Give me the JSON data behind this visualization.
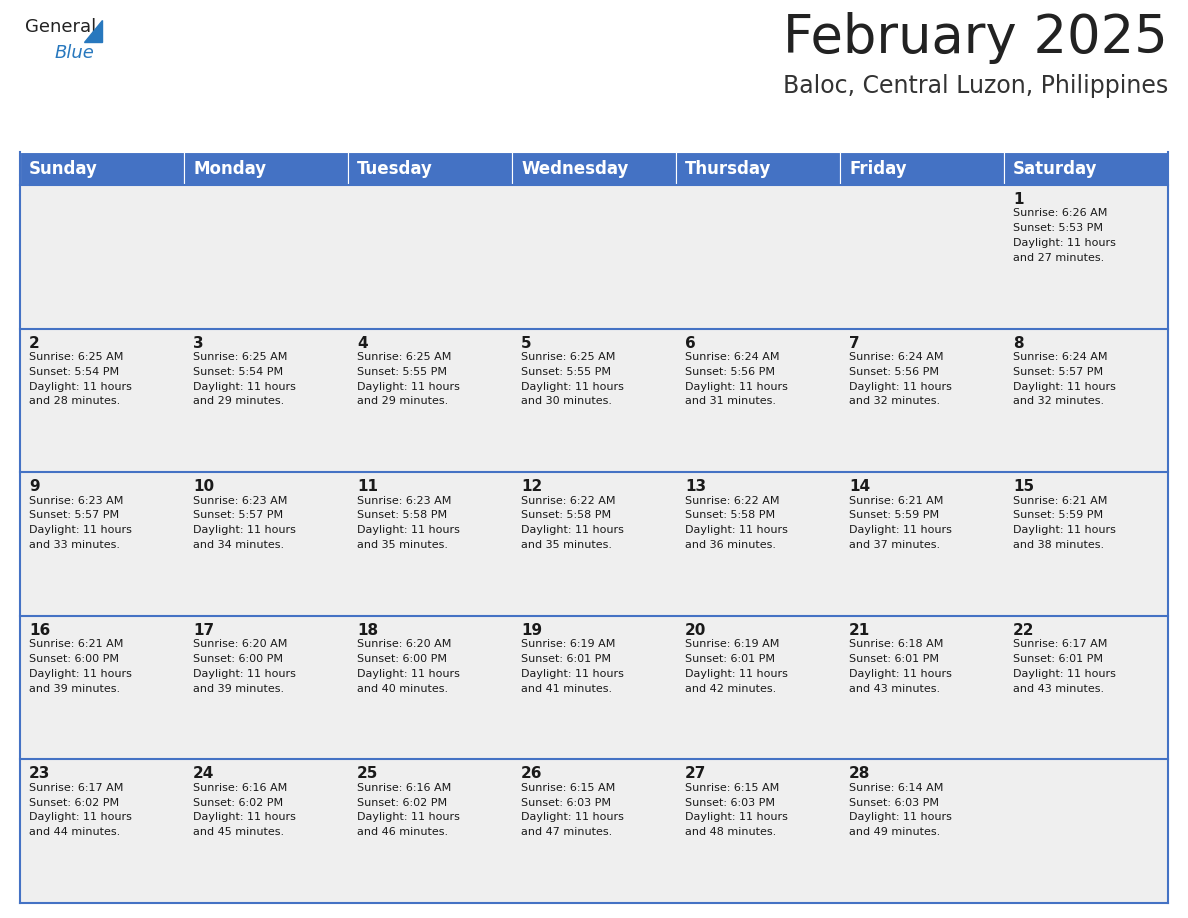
{
  "title": "February 2025",
  "subtitle": "Baloc, Central Luzon, Philippines",
  "header_bg": "#4472C4",
  "header_text_color": "#FFFFFF",
  "header_font_size": 12,
  "days_of_week": [
    "Sunday",
    "Monday",
    "Tuesday",
    "Wednesday",
    "Thursday",
    "Friday",
    "Saturday"
  ],
  "title_font_size": 38,
  "subtitle_font_size": 17,
  "title_color": "#222222",
  "subtitle_color": "#333333",
  "cell_bg_even": "#EFEFEF",
  "cell_bg_odd": "#FFFFFF",
  "day_num_color": "#1a1a1a",
  "info_color": "#1a1a1a",
  "border_color": "#4472C4",
  "logo_general_color": "#222222",
  "logo_blue_color": "#2878BE",
  "weeks": [
    [
      {
        "day": null,
        "sunrise": null,
        "sunset": null,
        "daylight": null
      },
      {
        "day": null,
        "sunrise": null,
        "sunset": null,
        "daylight": null
      },
      {
        "day": null,
        "sunrise": null,
        "sunset": null,
        "daylight": null
      },
      {
        "day": null,
        "sunrise": null,
        "sunset": null,
        "daylight": null
      },
      {
        "day": null,
        "sunrise": null,
        "sunset": null,
        "daylight": null
      },
      {
        "day": null,
        "sunrise": null,
        "sunset": null,
        "daylight": null
      },
      {
        "day": 1,
        "sunrise": "6:26 AM",
        "sunset": "5:53 PM",
        "daylight": "11 hours and 27 minutes."
      }
    ],
    [
      {
        "day": 2,
        "sunrise": "6:25 AM",
        "sunset": "5:54 PM",
        "daylight": "11 hours and 28 minutes."
      },
      {
        "day": 3,
        "sunrise": "6:25 AM",
        "sunset": "5:54 PM",
        "daylight": "11 hours and 29 minutes."
      },
      {
        "day": 4,
        "sunrise": "6:25 AM",
        "sunset": "5:55 PM",
        "daylight": "11 hours and 29 minutes."
      },
      {
        "day": 5,
        "sunrise": "6:25 AM",
        "sunset": "5:55 PM",
        "daylight": "11 hours and 30 minutes."
      },
      {
        "day": 6,
        "sunrise": "6:24 AM",
        "sunset": "5:56 PM",
        "daylight": "11 hours and 31 minutes."
      },
      {
        "day": 7,
        "sunrise": "6:24 AM",
        "sunset": "5:56 PM",
        "daylight": "11 hours and 32 minutes."
      },
      {
        "day": 8,
        "sunrise": "6:24 AM",
        "sunset": "5:57 PM",
        "daylight": "11 hours and 32 minutes."
      }
    ],
    [
      {
        "day": 9,
        "sunrise": "6:23 AM",
        "sunset": "5:57 PM",
        "daylight": "11 hours and 33 minutes."
      },
      {
        "day": 10,
        "sunrise": "6:23 AM",
        "sunset": "5:57 PM",
        "daylight": "11 hours and 34 minutes."
      },
      {
        "day": 11,
        "sunrise": "6:23 AM",
        "sunset": "5:58 PM",
        "daylight": "11 hours and 35 minutes."
      },
      {
        "day": 12,
        "sunrise": "6:22 AM",
        "sunset": "5:58 PM",
        "daylight": "11 hours and 35 minutes."
      },
      {
        "day": 13,
        "sunrise": "6:22 AM",
        "sunset": "5:58 PM",
        "daylight": "11 hours and 36 minutes."
      },
      {
        "day": 14,
        "sunrise": "6:21 AM",
        "sunset": "5:59 PM",
        "daylight": "11 hours and 37 minutes."
      },
      {
        "day": 15,
        "sunrise": "6:21 AM",
        "sunset": "5:59 PM",
        "daylight": "11 hours and 38 minutes."
      }
    ],
    [
      {
        "day": 16,
        "sunrise": "6:21 AM",
        "sunset": "6:00 PM",
        "daylight": "11 hours and 39 minutes."
      },
      {
        "day": 17,
        "sunrise": "6:20 AM",
        "sunset": "6:00 PM",
        "daylight": "11 hours and 39 minutes."
      },
      {
        "day": 18,
        "sunrise": "6:20 AM",
        "sunset": "6:00 PM",
        "daylight": "11 hours and 40 minutes."
      },
      {
        "day": 19,
        "sunrise": "6:19 AM",
        "sunset": "6:01 PM",
        "daylight": "11 hours and 41 minutes."
      },
      {
        "day": 20,
        "sunrise": "6:19 AM",
        "sunset": "6:01 PM",
        "daylight": "11 hours and 42 minutes."
      },
      {
        "day": 21,
        "sunrise": "6:18 AM",
        "sunset": "6:01 PM",
        "daylight": "11 hours and 43 minutes."
      },
      {
        "day": 22,
        "sunrise": "6:17 AM",
        "sunset": "6:01 PM",
        "daylight": "11 hours and 43 minutes."
      }
    ],
    [
      {
        "day": 23,
        "sunrise": "6:17 AM",
        "sunset": "6:02 PM",
        "daylight": "11 hours and 44 minutes."
      },
      {
        "day": 24,
        "sunrise": "6:16 AM",
        "sunset": "6:02 PM",
        "daylight": "11 hours and 45 minutes."
      },
      {
        "day": 25,
        "sunrise": "6:16 AM",
        "sunset": "6:02 PM",
        "daylight": "11 hours and 46 minutes."
      },
      {
        "day": 26,
        "sunrise": "6:15 AM",
        "sunset": "6:03 PM",
        "daylight": "11 hours and 47 minutes."
      },
      {
        "day": 27,
        "sunrise": "6:15 AM",
        "sunset": "6:03 PM",
        "daylight": "11 hours and 48 minutes."
      },
      {
        "day": 28,
        "sunrise": "6:14 AM",
        "sunset": "6:03 PM",
        "daylight": "11 hours and 49 minutes."
      },
      {
        "day": null,
        "sunrise": null,
        "sunset": null,
        "daylight": null
      }
    ]
  ]
}
